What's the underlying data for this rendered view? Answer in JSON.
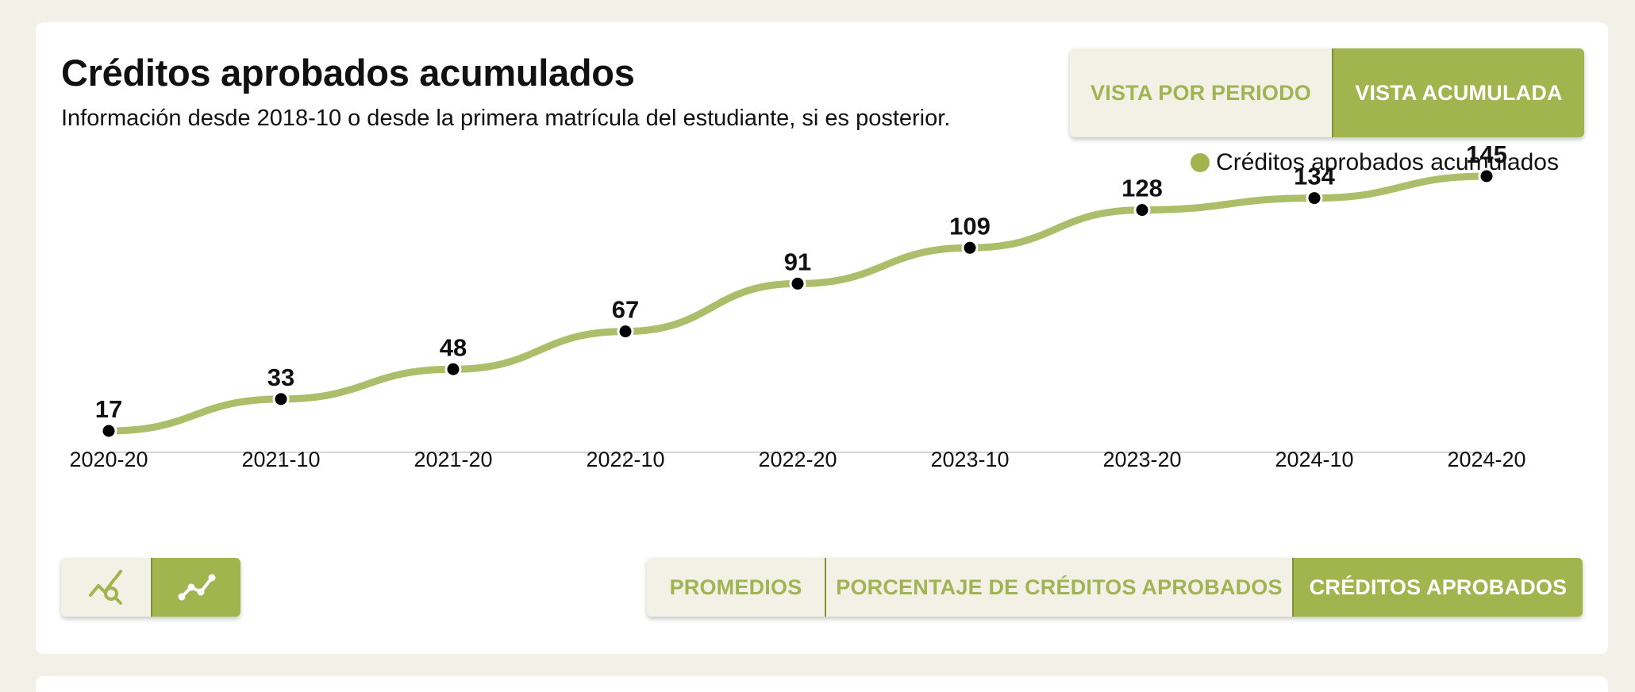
{
  "header": {
    "title": "Créditos aprobados acumulados",
    "subtitle": "Información desde 2018-10 o desde la primera matrícula del estudiante, si es posterior."
  },
  "view_toggle": {
    "per_period_label": "VISTA POR PERIODO",
    "cumulative_label": "VISTA ACUMULADA",
    "active": "cumulative"
  },
  "legend": {
    "label": "Créditos aprobados acumulados"
  },
  "colors": {
    "accent": "#a2b44e",
    "line": "#acbe69",
    "button_bg": "#f3f0e6",
    "button_text": "#9fb452",
    "page_bg": "#f3f0e8"
  },
  "chart_data": {
    "type": "line",
    "title": "Créditos aprobados acumulados",
    "categories": [
      "2020-20",
      "2021-10",
      "2021-20",
      "2022-10",
      "2022-20",
      "2023-10",
      "2023-20",
      "2024-10",
      "2024-20"
    ],
    "series": [
      {
        "name": "Créditos aprobados acumulados",
        "values": [
          17,
          33,
          48,
          67,
          91,
          109,
          128,
          134,
          145
        ]
      }
    ],
    "ylim": [
      0,
      160
    ],
    "grid": false,
    "legend_position": "top-right",
    "data_labels": true
  },
  "tools": {
    "items": [
      {
        "icon": "chart-search-icon",
        "active": false
      },
      {
        "icon": "line-chart-icon",
        "active": true
      }
    ]
  },
  "metric_tabs": {
    "items": [
      {
        "label": "PROMEDIOS",
        "active": false
      },
      {
        "label": "PORCENTAJE DE CRÉDITOS APROBADOS",
        "active": false
      },
      {
        "label": "CRÉDITOS APROBADOS",
        "active": true
      }
    ]
  }
}
